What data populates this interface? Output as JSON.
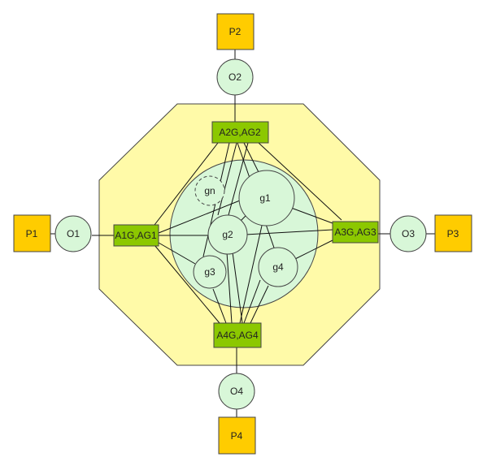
{
  "ports": {
    "p1": "P1",
    "p2": "P2",
    "p3": "P3",
    "p4": "P4"
  },
  "observers": {
    "o1": "O1",
    "o2": "O2",
    "o3": "O3",
    "o4": "O4"
  },
  "agents": {
    "a1": "A1G,AG1",
    "a2": "A2G,AG2",
    "a3": "A3G,AG3",
    "a4": "A4G,AG4"
  },
  "groups": {
    "g1": "g1",
    "g2": "g2",
    "g3": "g3",
    "g4": "g4",
    "gn": "gn"
  },
  "colors": {
    "outer_fill": "#fffaa8",
    "cluster_fill": "#d8f7d8",
    "port_fill": "#ffcc00",
    "agent_fill": "#8cc800"
  }
}
